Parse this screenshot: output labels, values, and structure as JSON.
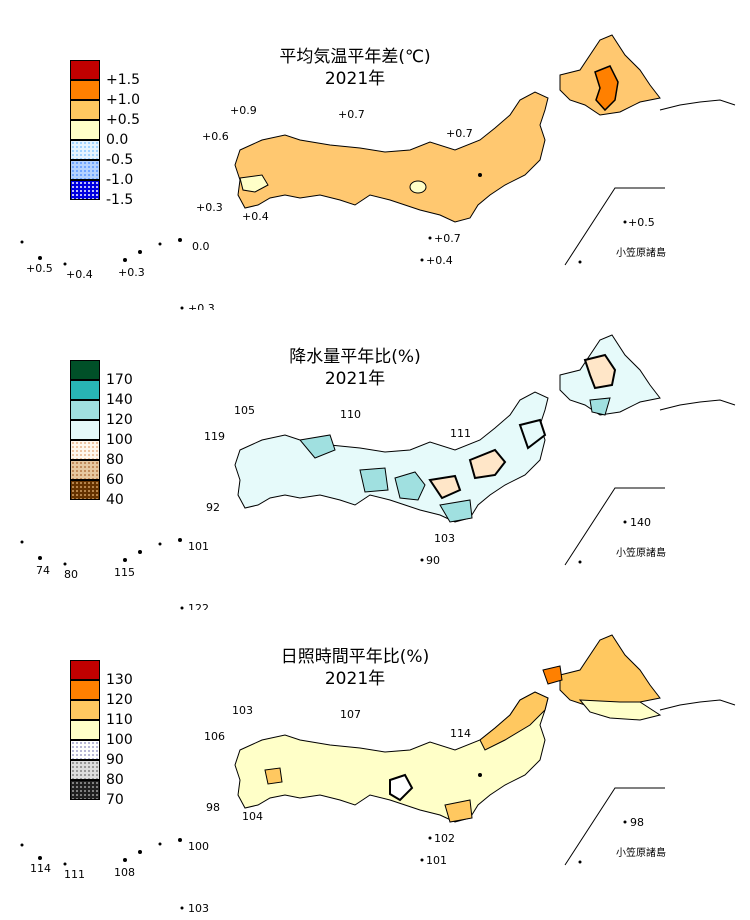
{
  "panels": [
    {
      "id": "temperature",
      "title": "平均気温平年差(℃)",
      "year": "2021年",
      "legend": [
        {
          "label": "+1.5",
          "color": "#c00000",
          "pattern": "solid"
        },
        {
          "label": "+1.0",
          "color": "#ff8000",
          "pattern": "solid"
        },
        {
          "label": "+0.5",
          "color": "#ffc860",
          "pattern": "solid"
        },
        {
          "label": "0.0",
          "color": "#ffffc8",
          "pattern": "solid"
        },
        {
          "label": "-0.5",
          "color": "#b4dcff",
          "pattern": "dots-light"
        },
        {
          "label": "-1.0",
          "color": "#6ea0ff",
          "pattern": "dots-light"
        },
        {
          "label": "-1.5",
          "color": "#0000e0",
          "pattern": "dots-dense"
        }
      ],
      "values": [
        "+0.9",
        "+0.7",
        "+0.6",
        "+0.7",
        "+0.3",
        "+0.4",
        "+0.7",
        "+0.4",
        "+0.5",
        "0.0",
        "+0.4",
        "+0.3",
        "+0.5",
        "+0.3"
      ],
      "islands_label": "小笠原諸島",
      "fill_main": "#ffc870",
      "fill_hokkaido_center": "#ff8000"
    },
    {
      "id": "precipitation",
      "title": "降水量平年比(%)",
      "year": "2021年",
      "legend": [
        {
          "label": "170",
          "color": "#005028",
          "pattern": "solid"
        },
        {
          "label": "140",
          "color": "#28b4b4",
          "pattern": "solid"
        },
        {
          "label": "120",
          "color": "#a0e0e0",
          "pattern": "solid"
        },
        {
          "label": "100",
          "color": "#e6fafa",
          "pattern": "solid"
        },
        {
          "label": "80",
          "color": "#ffe6c8",
          "pattern": "dots-light"
        },
        {
          "label": "60",
          "color": "#d2a064",
          "pattern": "dots-light"
        },
        {
          "label": "40",
          "color": "#643200",
          "pattern": "dots-dense"
        }
      ],
      "values": [
        "105",
        "110",
        "119",
        "111",
        "92",
        "103",
        "90",
        "140",
        "74",
        "80",
        "115",
        "101",
        "122"
      ],
      "islands_label": "小笠原諸島",
      "fill_main": "#e6fafa",
      "fill_hokkaido_center": "#ffe6c8"
    },
    {
      "id": "sunshine",
      "title": "日照時間平年比(%)",
      "year": "2021年",
      "legend": [
        {
          "label": "130",
          "color": "#c00000",
          "pattern": "solid"
        },
        {
          "label": "120",
          "color": "#ff8000",
          "pattern": "solid"
        },
        {
          "label": "110",
          "color": "#ffc860",
          "pattern": "solid"
        },
        {
          "label": "100",
          "color": "#ffffc8",
          "pattern": "solid"
        },
        {
          "label": "90",
          "color": "#ffffff",
          "pattern": "dots-light"
        },
        {
          "label": "80",
          "color": "#c8c8c8",
          "pattern": "dots-light"
        },
        {
          "label": "70",
          "color": "#404040",
          "pattern": "dots-dense"
        }
      ],
      "values": [
        "103",
        "107",
        "106",
        "114",
        "98",
        "104",
        "102",
        "101",
        "98",
        "100",
        "114",
        "111",
        "108",
        "103"
      ],
      "islands_label": "小笠原諸島",
      "fill_main": "#ffffc8",
      "fill_hokkaido_center": "#ffc860"
    }
  ]
}
